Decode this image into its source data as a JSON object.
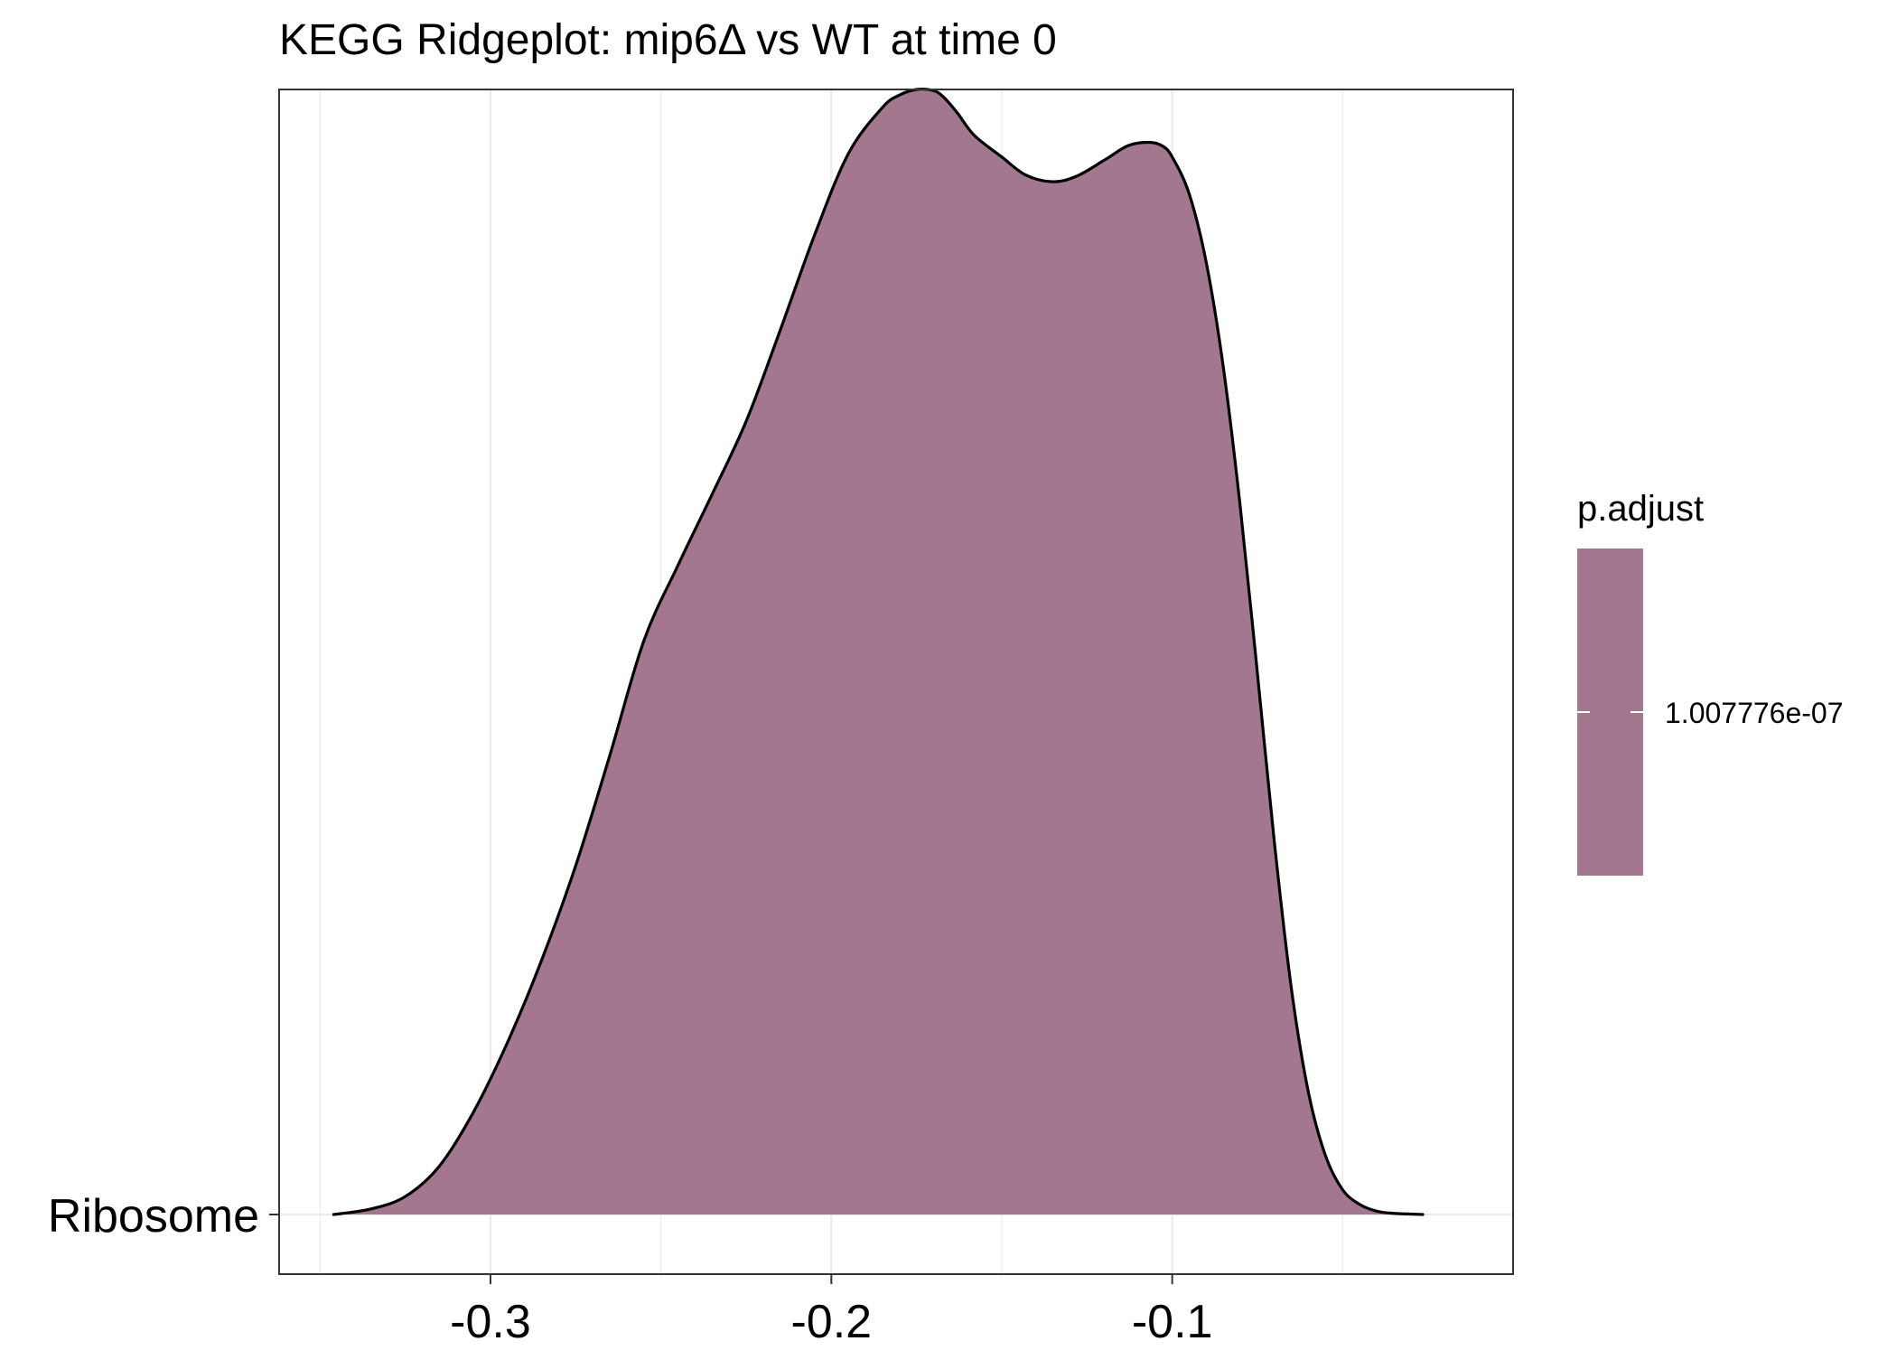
{
  "chart_data": {
    "type": "ridgeline",
    "title": "KEGG Ridgeplot: mip6Δ vs WT at time 0",
    "xlabel": "",
    "ylabel": "",
    "xlim": [
      -0.362,
      0.0
    ],
    "x_ticks": [
      -0.3,
      -0.2,
      -0.1
    ],
    "x_tick_labels": [
      "-0.3",
      "-0.2",
      "-0.1"
    ],
    "grid": true,
    "series": [
      {
        "name": "Ribosome",
        "fill": "#a3778e",
        "density": {
          "x": [
            -0.346,
            -0.335,
            -0.325,
            -0.315,
            -0.305,
            -0.295,
            -0.285,
            -0.275,
            -0.265,
            -0.255,
            -0.245,
            -0.235,
            -0.225,
            -0.215,
            -0.205,
            -0.195,
            -0.185,
            -0.18,
            -0.175,
            -0.17,
            -0.167,
            -0.163,
            -0.158,
            -0.15,
            -0.143,
            -0.135,
            -0.128,
            -0.12,
            -0.113,
            -0.107,
            -0.103,
            -0.1,
            -0.095,
            -0.09,
            -0.085,
            -0.08,
            -0.075,
            -0.07,
            -0.065,
            -0.06,
            -0.055,
            -0.05,
            -0.045,
            -0.04,
            -0.035,
            -0.031,
            -0.0265
          ],
          "y": [
            0.0,
            0.005,
            0.016,
            0.043,
            0.091,
            0.153,
            0.226,
            0.31,
            0.408,
            0.51,
            0.577,
            0.64,
            0.705,
            0.786,
            0.87,
            0.943,
            0.984,
            0.995,
            1.0,
            0.999,
            0.993,
            0.979,
            0.959,
            0.94,
            0.924,
            0.918,
            0.923,
            0.937,
            0.95,
            0.953,
            0.95,
            0.94,
            0.907,
            0.846,
            0.753,
            0.628,
            0.481,
            0.33,
            0.2,
            0.108,
            0.052,
            0.022,
            0.009,
            0.003,
            0.001,
            0.0005,
            0.0
          ]
        }
      }
    ],
    "legend": {
      "title": "p.adjust",
      "placement": "right",
      "value_label": "1.007776e-07",
      "color": "#a3778e"
    }
  }
}
